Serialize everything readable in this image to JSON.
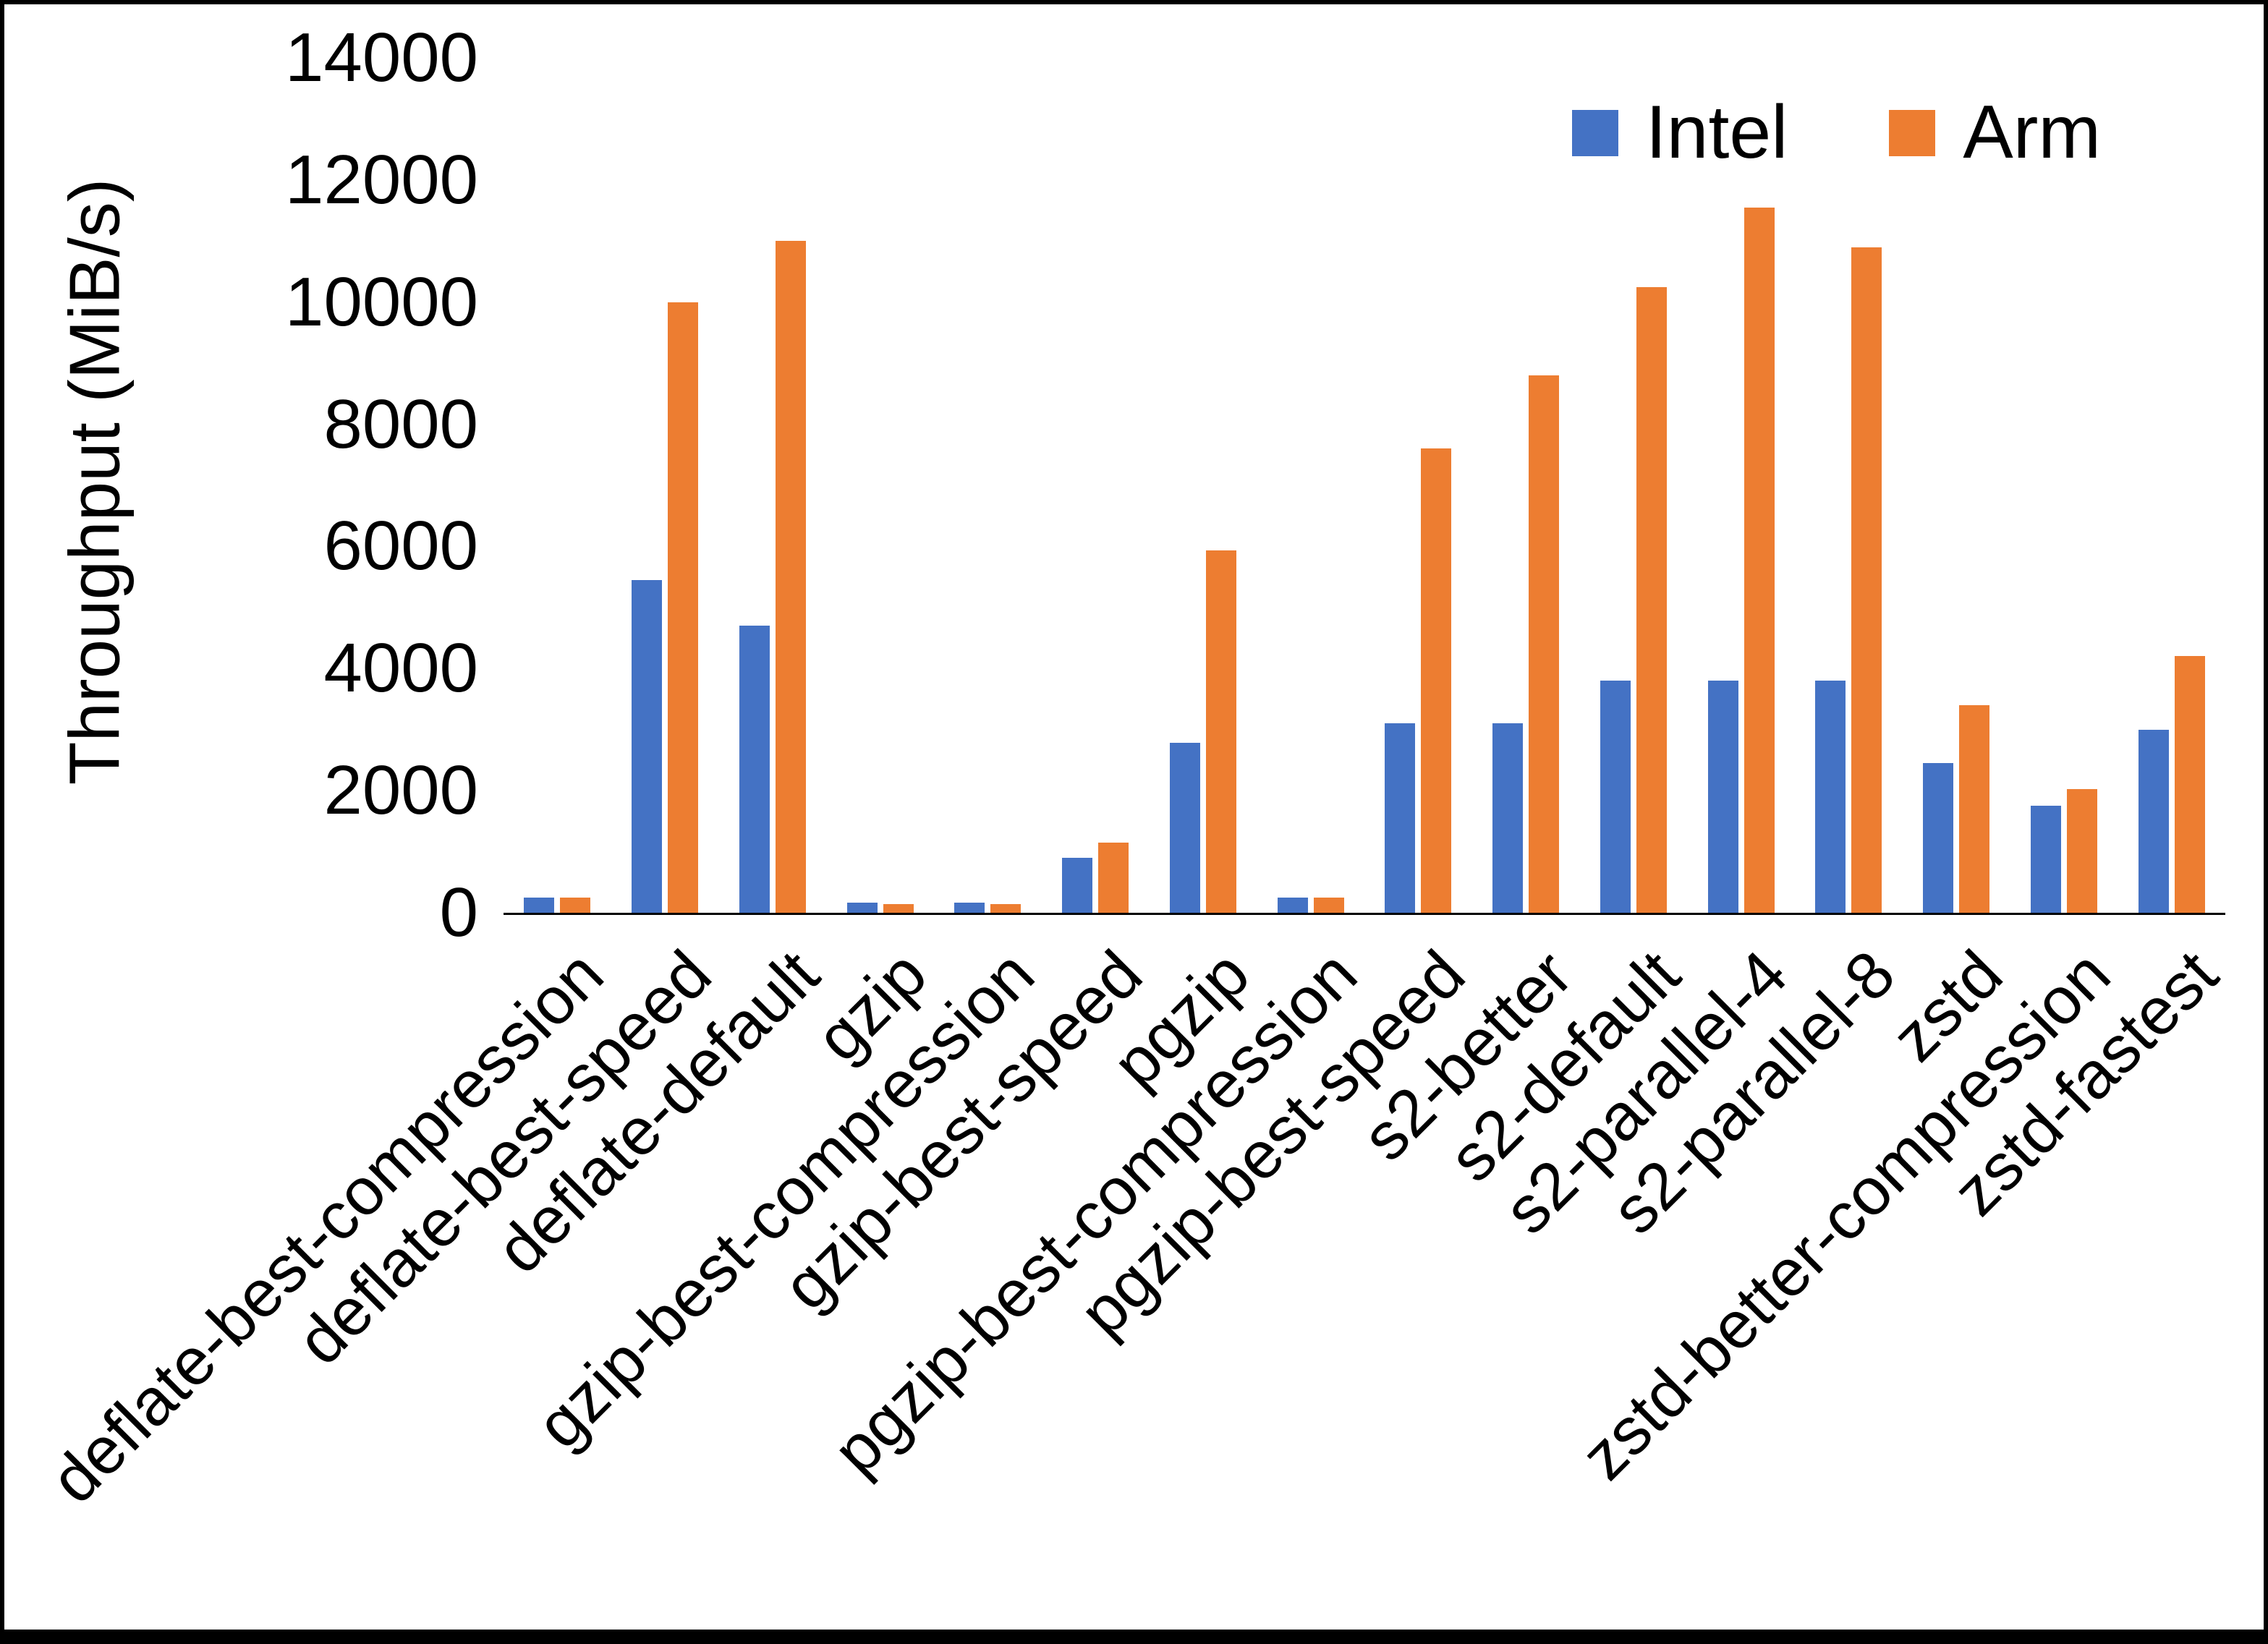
{
  "figure": {
    "background": "#ffffff",
    "border_color": "#000000"
  },
  "chart_data": {
    "type": "bar",
    "title": "",
    "xlabel": "",
    "ylabel": "Throughput (MiB/s)",
    "ylim": [
      0,
      14000
    ],
    "yticks": [
      0,
      2000,
      4000,
      6000,
      8000,
      10000,
      12000,
      14000
    ],
    "grid": false,
    "legend_position": "top-right",
    "categories": [
      "deflate-best-compression",
      "deflate-best-speed",
      "deflate-default",
      "gzip",
      "gzip-best-compression",
      "gzip-best-speed",
      "pgzip",
      "pgzip-best-compression",
      "pgzip-best-speed",
      "s2-better",
      "s2-default",
      "s2-parallel-4",
      "s2-parallel-8",
      "zstd",
      "zstd-better-compression",
      "zstd-fastest"
    ],
    "series": [
      {
        "name": "Intel",
        "color": "#4472C4",
        "values": [
          250,
          5450,
          4700,
          160,
          160,
          900,
          2780,
          250,
          3100,
          3100,
          3800,
          3800,
          3800,
          2450,
          1750,
          3000
        ]
      },
      {
        "name": "Arm",
        "color": "#ED7D31",
        "values": [
          250,
          10000,
          11000,
          140,
          140,
          1150,
          5930,
          250,
          7600,
          8800,
          10250,
          11550,
          10900,
          3400,
          2020,
          4200
        ]
      }
    ]
  }
}
